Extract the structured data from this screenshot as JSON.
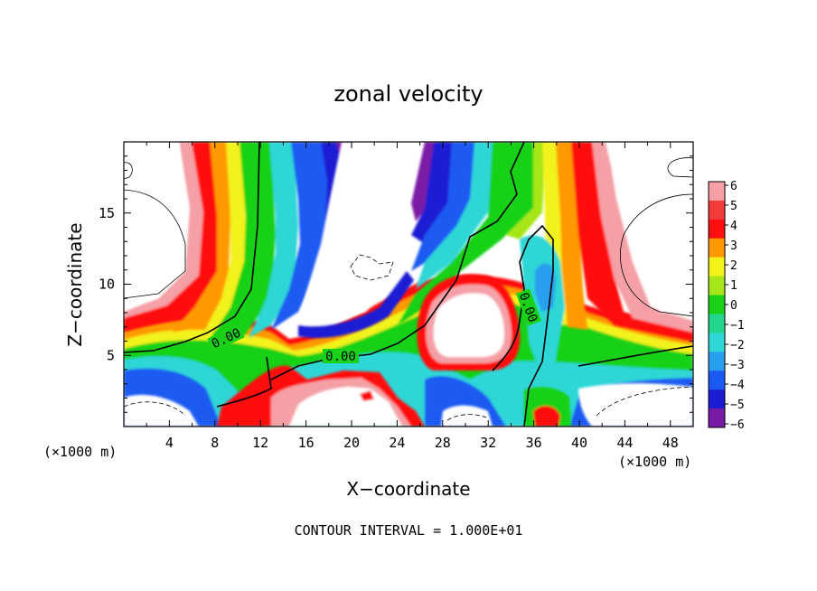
{
  "chart_data": {
    "type": "heatmap",
    "title": "zonal velocity",
    "xlabel": "X−coordinate",
    "ylabel": "Z−coordinate",
    "x_unit_left": "(×1000 m)",
    "x_unit_right": "(×1000 m)",
    "xlim": [
      0,
      50
    ],
    "ylim": [
      0,
      20
    ],
    "x_ticks": [
      4,
      8,
      12,
      16,
      20,
      24,
      28,
      32,
      36,
      40,
      44,
      48
    ],
    "x_tick_labels": [
      "4",
      "8",
      "12",
      "16",
      "20",
      "24",
      "28",
      "32",
      "36",
      "40",
      "44",
      "48"
    ],
    "y_ticks": [
      5,
      10,
      15
    ],
    "y_tick_labels": [
      "5",
      "10",
      "15"
    ],
    "colorbar": {
      "levels": [
        6,
        5,
        4,
        3,
        2,
        1,
        0,
        -1,
        -2,
        -3,
        -4,
        -5,
        -6
      ],
      "labels": [
        "6",
        "5",
        "4",
        "3",
        "2",
        "1",
        "0",
        "−1",
        "−2",
        "−3",
        "−4",
        "−5",
        "−6"
      ],
      "colors": [
        "#f4a0a6",
        "#f23c3c",
        "#ff1010",
        "#ff9900",
        "#f2f21a",
        "#a6e619",
        "#19d119",
        "#23d68c",
        "#2ed6d6",
        "#2a9eee",
        "#1a5af2",
        "#1c1cd4",
        "#7a1aa6"
      ]
    },
    "contour_labels": [
      "0.00",
      "0.00",
      "0.00"
    ],
    "footer": "CONTOUR INTERVAL = 1.000E+01"
  }
}
